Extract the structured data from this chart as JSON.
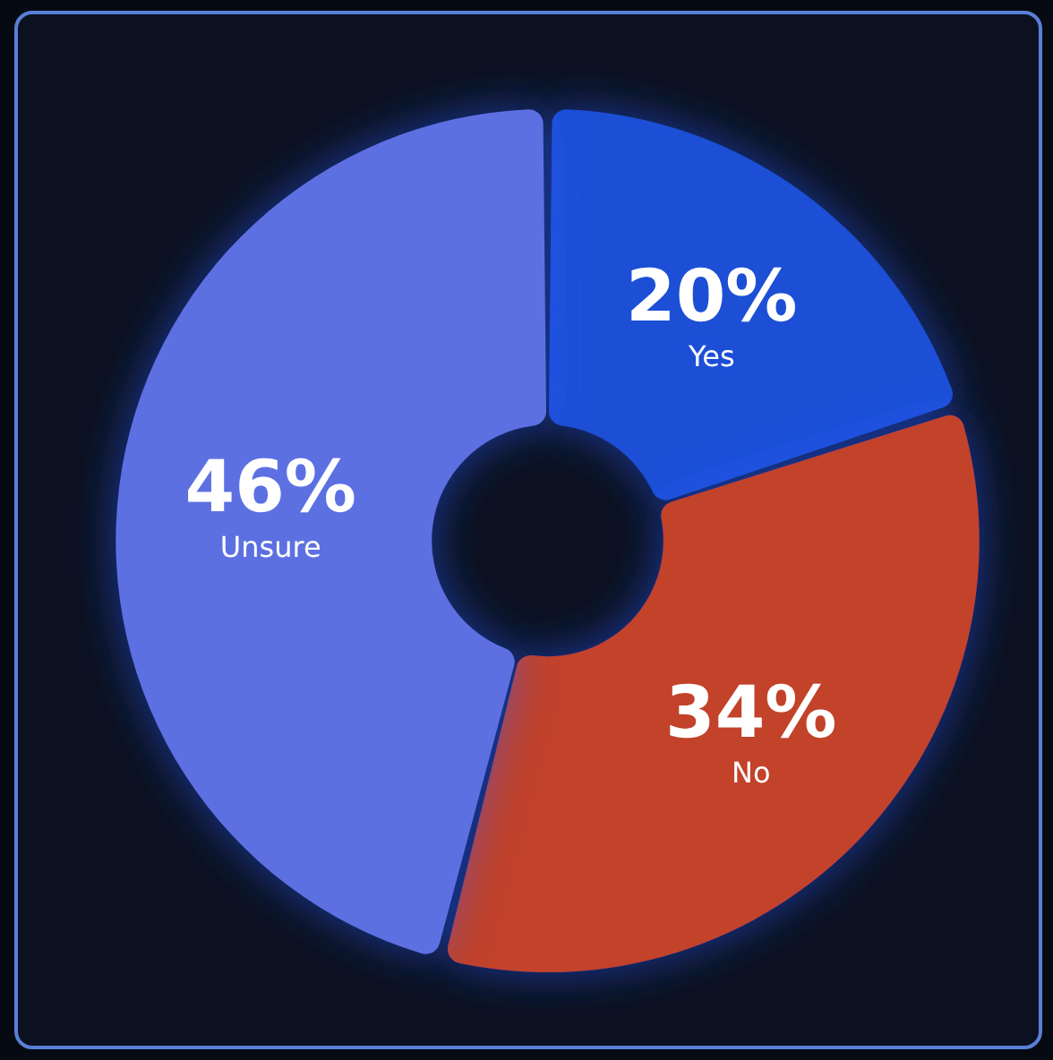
{
  "chart_data": {
    "type": "donut",
    "categories": [
      "Yes",
      "No",
      "Unsure"
    ],
    "values": [
      20,
      34,
      46
    ],
    "value_labels": [
      "20%",
      "34%",
      "46%"
    ],
    "colors": [
      "#1d4fd6",
      "#c2432c",
      "#5d6fe2"
    ],
    "legend": false
  }
}
